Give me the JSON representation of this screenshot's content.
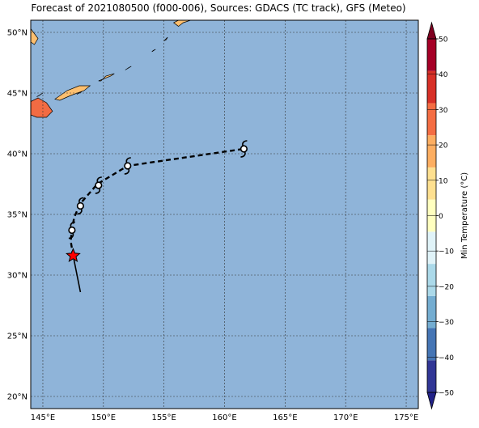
{
  "title": "Forecast of 2021080500 (f000-006), Sources: GDACS (TC track), GFS (Meteo)",
  "map": {
    "lon_range": [
      144,
      176
    ],
    "lat_range": [
      19,
      51
    ],
    "ocean_color": "#8fb4d9",
    "grid": true,
    "lon_ticks": [
      {
        "value": 145,
        "label": "145°E"
      },
      {
        "value": 150,
        "label": "150°E"
      },
      {
        "value": 155,
        "label": "155°E"
      },
      {
        "value": 160,
        "label": "160°E"
      },
      {
        "value": 165,
        "label": "165°E"
      },
      {
        "value": 170,
        "label": "170°E"
      },
      {
        "value": 175,
        "label": "175°E"
      }
    ],
    "lat_ticks": [
      {
        "value": 20,
        "label": "20°N"
      },
      {
        "value": 25,
        "label": "25°N"
      },
      {
        "value": 30,
        "label": "30°N"
      },
      {
        "value": 35,
        "label": "35°N"
      },
      {
        "value": 40,
        "label": "40°N"
      },
      {
        "value": 45,
        "label": "45°N"
      },
      {
        "value": 50,
        "label": "50°N"
      }
    ],
    "land": [
      {
        "name": "hokkaido-coast",
        "color": "#f26b43",
        "points": [
          [
            144.0,
            44.3
          ],
          [
            144.6,
            44.6
          ],
          [
            145.3,
            44.2
          ],
          [
            145.8,
            43.5
          ],
          [
            145.3,
            43.0
          ],
          [
            144.5,
            43.0
          ],
          [
            144.0,
            43.2
          ]
        ]
      },
      {
        "name": "kuril-island-1",
        "color": "#fdbf6f",
        "points": [
          [
            146.0,
            44.5
          ],
          [
            147.0,
            45.2
          ],
          [
            148.0,
            45.6
          ],
          [
            148.9,
            45.6
          ],
          [
            148.4,
            45.2
          ],
          [
            147.3,
            44.8
          ],
          [
            146.4,
            44.4
          ]
        ]
      },
      {
        "name": "kuril-island-2",
        "color": "#fdbf6f",
        "points": [
          [
            149.6,
            46.0
          ],
          [
            150.6,
            46.4
          ],
          [
            150.9,
            46.6
          ],
          [
            150.2,
            46.4
          ],
          [
            149.8,
            46.0
          ]
        ]
      },
      {
        "name": "kuril-island-3",
        "color": "#fdbf6f",
        "points": [
          [
            151.8,
            46.9
          ],
          [
            152.3,
            47.2
          ],
          [
            152.1,
            47.1
          ]
        ]
      },
      {
        "name": "kuril-island-4",
        "color": "#fdbf6f",
        "points": [
          [
            144.5,
            44.7
          ],
          [
            145.0,
            45.0
          ],
          [
            144.7,
            44.8
          ]
        ]
      },
      {
        "name": "kuril-island-5",
        "color": "#fdbf6f",
        "points": [
          [
            147.8,
            44.9
          ],
          [
            148.2,
            45.1
          ],
          [
            148.0,
            45.0
          ]
        ]
      },
      {
        "name": "kuril-island-6",
        "color": "#fdbf6f",
        "points": [
          [
            154.0,
            48.4
          ],
          [
            154.3,
            48.6
          ],
          [
            154.1,
            48.5
          ]
        ]
      },
      {
        "name": "kuril-island-7",
        "color": "#fdbf6f",
        "points": [
          [
            155.0,
            49.3
          ],
          [
            155.3,
            49.6
          ],
          [
            155.2,
            49.4
          ]
        ]
      },
      {
        "name": "kamchatka-tip",
        "color": "#fdbf6f",
        "points": [
          [
            156.2,
            50.5
          ],
          [
            156.6,
            50.8
          ],
          [
            157.2,
            51.0
          ],
          [
            156.2,
            51.0
          ],
          [
            155.8,
            50.8
          ]
        ]
      },
      {
        "name": "sakhalin-edge",
        "color": "#fdbf6f",
        "points": [
          [
            144.0,
            50.3
          ],
          [
            144.6,
            49.5
          ],
          [
            144.3,
            49.0
          ],
          [
            144.0,
            49.2
          ]
        ]
      }
    ],
    "track": {
      "observed": [
        [
          48.1,
          28.6
        ],
        [
          47.5,
          31.6
        ]
      ],
      "forecast": [
        [
          47.5,
          31.6
        ],
        [
          47.3,
          32.8
        ],
        [
          47.4,
          33.8
        ],
        [
          47.6,
          34.8
        ],
        [
          48.1,
          35.9
        ],
        [
          49.5,
          37.5
        ],
        [
          52.0,
          39.0
        ],
        [
          61.6,
          40.4
        ]
      ],
      "symbol_points": [
        [
          47.4,
          33.7
        ],
        [
          48.1,
          35.7
        ],
        [
          49.6,
          37.4
        ],
        [
          52.0,
          39.0
        ],
        [
          61.6,
          40.4
        ]
      ],
      "current_position": [
        47.5,
        31.6
      ],
      "track_color": "#000000",
      "star_color": "#ff0000"
    }
  },
  "colorbar": {
    "label": "Min Temperature (°C)",
    "range": [
      -50,
      50
    ],
    "colors": [
      "#313695",
      "#4575b4",
      "#74add1",
      "#abd9e9",
      "#e0f3f8",
      "#ffffbf",
      "#fee090",
      "#fdae61",
      "#f46d43",
      "#d73027",
      "#a50026"
    ],
    "extend_low_color": "#222288",
    "extend_high_color": "#7f0020",
    "ticks": [
      -50,
      -40,
      -30,
      -20,
      -10,
      0,
      10,
      20,
      30,
      40,
      50
    ],
    "tick_labels": [
      "−50",
      "−40",
      "−30",
      "−20",
      "−10",
      "0",
      "10",
      "20",
      "30",
      "40",
      "50"
    ]
  }
}
